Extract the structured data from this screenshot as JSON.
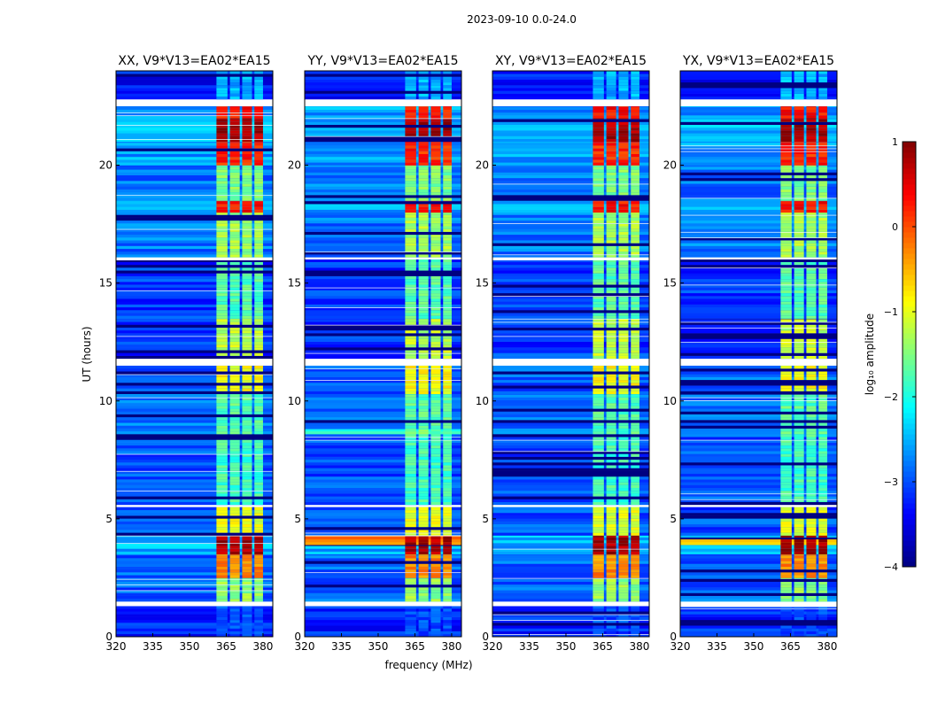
{
  "chart_data": {
    "type": "heatmap",
    "title": "2023-09-10 0.0-24.0",
    "xlabel": "frequency (MHz)",
    "ylabel": "UT (hours)",
    "xlim": [
      320,
      384
    ],
    "ylim": [
      0,
      24
    ],
    "xticks": [
      320,
      335,
      350,
      365,
      380
    ],
    "yticks": [
      0,
      5,
      10,
      15,
      20
    ],
    "panels": [
      {
        "title": "XX, V9*V13=EA02*EA15",
        "extra_bands": []
      },
      {
        "title": "YY, V9*V13=EA02*EA15",
        "extra_bands": [
          [
            3.9,
            4.3,
            -0.3,
            0.8
          ],
          [
            8.6,
            8.8,
            -1.8,
            -1.6
          ]
        ]
      },
      {
        "title": "XY, V9*V13=EA02*EA15",
        "extra_bands": []
      },
      {
        "title": "YX, V9*V13=EA02*EA15",
        "extra_bands": [
          [
            3.9,
            4.2,
            -0.8,
            0.8
          ]
        ]
      }
    ],
    "rfi_channels_mhz": [
      [
        361,
        365.5
      ],
      [
        366.5,
        370.5
      ],
      [
        371.5,
        375.5
      ],
      [
        376.5,
        380
      ]
    ],
    "bands_note": "[start_hour, end_hour, background log10 amplitude, RFI log10 amplitude]; null = flagged",
    "bands": [
      [
        0.0,
        1.3,
        -3.2,
        -3.0
      ],
      [
        1.3,
        1.5,
        null,
        null
      ],
      [
        1.5,
        2.5,
        -2.9,
        -1.4
      ],
      [
        2.5,
        3.5,
        -2.9,
        -0.3
      ],
      [
        3.5,
        4.3,
        -2.5,
        0.8
      ],
      [
        4.3,
        5.5,
        -3.0,
        -1.0
      ],
      [
        5.5,
        5.6,
        null,
        null
      ],
      [
        5.6,
        8.6,
        -3.0,
        -1.8
      ],
      [
        8.6,
        10.3,
        -2.8,
        -1.7
      ],
      [
        10.3,
        11.5,
        -2.9,
        -0.9
      ],
      [
        11.5,
        11.8,
        null,
        null
      ],
      [
        11.8,
        13.5,
        -3.1,
        -1.2
      ],
      [
        13.5,
        16.0,
        -3.1,
        -1.7
      ],
      [
        16.0,
        16.1,
        null,
        null
      ],
      [
        16.1,
        18.0,
        -2.8,
        -1.3
      ],
      [
        18.0,
        18.5,
        -2.6,
        0.3
      ],
      [
        18.5,
        20.0,
        -2.8,
        -1.5
      ],
      [
        20.0,
        21.0,
        -2.6,
        0.2
      ],
      [
        21.0,
        22.0,
        -2.5,
        0.8
      ],
      [
        22.0,
        22.5,
        -2.6,
        0.3
      ],
      [
        22.5,
        22.8,
        null,
        null
      ],
      [
        22.8,
        24.0,
        -3.3,
        -2.5
      ]
    ],
    "colorbar": {
      "label": "log₁₀ amplitude",
      "range": [
        -4,
        1
      ],
      "ticks": [
        1,
        0,
        -1,
        -2,
        -3,
        -4
      ],
      "tick_labels": [
        "1",
        "0",
        "−1",
        "−2",
        "−3",
        "−4"
      ],
      "colormap": "jet"
    }
  }
}
